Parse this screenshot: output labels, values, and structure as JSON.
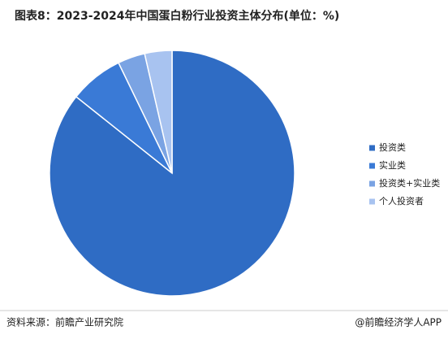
{
  "chart_data": {
    "type": "pie",
    "title": "图表8：2023-2024年中国蛋白粉行业投资主体分布(单位：%)",
    "categories": [
      "投资类",
      "实业类",
      "投资类+实业类",
      "个人投资者"
    ],
    "values": [
      85.7,
      7.1,
      3.6,
      3.6
    ],
    "colors": [
      "#2f6cc4",
      "#3a7ad6",
      "#7aa3e3",
      "#a8c3f0"
    ],
    "legend": "right",
    "source": "资料来源：前瞻产业研究院",
    "credit": "@前瞻经济学人APP"
  }
}
